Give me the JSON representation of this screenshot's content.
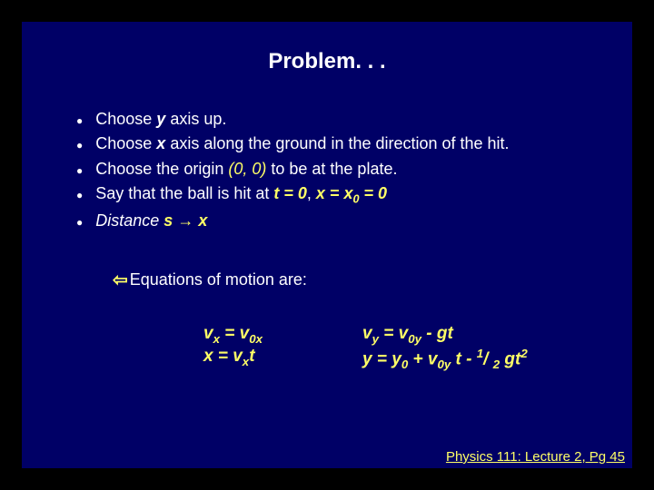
{
  "title": "Problem. . .",
  "bullets": [
    {
      "pre": "Choose ",
      "em": "y",
      "post": " axis up."
    },
    {
      "pre": "Choose ",
      "em": "x",
      "post": " axis along the ground in the direction of the hit."
    },
    {
      "pre": "Choose the origin ",
      "em": "(0, 0)",
      "post": " to be at the plate.",
      "em_color": "yellow"
    }
  ],
  "bullet4_pre": "Say that the ball is hit at ",
  "bullet4_t": "t = 0",
  "bullet4_mid": ", ",
  "bullet4_x": "x =  x",
  "bullet4_sub": "0",
  "bullet4_eq": " = 0",
  "bullet5_pre": "Distance ",
  "bullet5_s": "s",
  "bullet5_arrow": " → ",
  "bullet5_x": "x",
  "eq_header": "Equations of motion are:",
  "eq_left1_a": "v",
  "eq_left1_sub1": "x",
  "eq_left1_b": " = v",
  "eq_left1_sub2": "0x",
  "eq_left2_a": "x = v",
  "eq_left2_sub": "x",
  "eq_left2_b": "t",
  "eq_right1_a": "v",
  "eq_right1_sub1": "y",
  "eq_right1_b": " = v",
  "eq_right1_sub2": "0y",
  "eq_right1_c": " - gt",
  "eq_right2_a": "y = y",
  "eq_right2_sub1": "0",
  "eq_right2_b": " + v",
  "eq_right2_sub2": "0y",
  "eq_right2_c": " t - ",
  "eq_right2_sup1": "1",
  "eq_right2_slash": "/ ",
  "eq_right2_sub3": "2",
  "eq_right2_d": " gt",
  "eq_right2_sup2": "2",
  "footer": "Physics 111: Lecture 2, Pg 45"
}
